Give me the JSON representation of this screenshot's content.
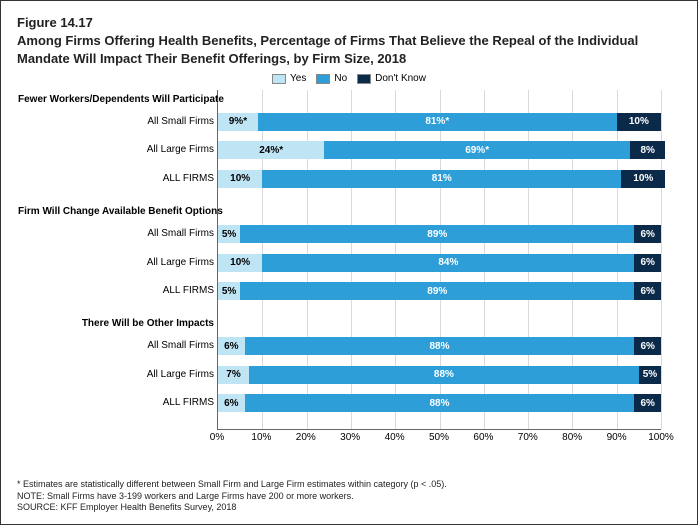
{
  "figure_number": "Figure 14.17",
  "title": "Among Firms Offering Health Benefits, Percentage of Firms That Believe the Repeal of the Individual Mandate Will Impact Their Benefit Offerings, by Firm Size, 2018",
  "legend": {
    "yes": "Yes",
    "no": "No",
    "dont_know": "Don't Know"
  },
  "colors": {
    "yes": "#bfe5f5",
    "no": "#2d9ed8",
    "dont_know": "#0b2a4a",
    "yes_text": "#000000",
    "no_text": "#ffffff",
    "dont_know_text": "#ffffff",
    "grid": "#d9d9d9"
  },
  "x_axis": {
    "min": 0,
    "max": 100,
    "step": 10,
    "ticks": [
      "0%",
      "10%",
      "20%",
      "30%",
      "40%",
      "50%",
      "60%",
      "70%",
      "80%",
      "90%",
      "100%"
    ]
  },
  "groups": [
    {
      "label": "Fewer Workers/Dependents Will Participate",
      "rows": [
        {
          "label": "All Small Firms",
          "yes": 9,
          "no": 81,
          "dk": 10,
          "yes_lbl": "9%*",
          "no_lbl": "81%*",
          "dk_lbl": "10%"
        },
        {
          "label": "All Large Firms",
          "yes": 24,
          "no": 69,
          "dk": 8,
          "yes_lbl": "24%*",
          "no_lbl": "69%*",
          "dk_lbl": "8%"
        },
        {
          "label": "ALL FIRMS",
          "yes": 10,
          "no": 81,
          "dk": 10,
          "yes_lbl": "10%",
          "no_lbl": "81%",
          "dk_lbl": "10%"
        }
      ]
    },
    {
      "label": "Firm Will Change Available Benefit Options",
      "rows": [
        {
          "label": "All Small Firms",
          "yes": 5,
          "no": 89,
          "dk": 6,
          "yes_lbl": "5%",
          "no_lbl": "89%",
          "dk_lbl": "6%"
        },
        {
          "label": "All Large Firms",
          "yes": 10,
          "no": 84,
          "dk": 6,
          "yes_lbl": "10%",
          "no_lbl": "84%",
          "dk_lbl": "6%"
        },
        {
          "label": "ALL FIRMS",
          "yes": 5,
          "no": 89,
          "dk": 6,
          "yes_lbl": "5%",
          "no_lbl": "89%",
          "dk_lbl": "6%"
        }
      ]
    },
    {
      "label": "There Will be Other Impacts",
      "rows": [
        {
          "label": "All Small Firms",
          "yes": 6,
          "no": 88,
          "dk": 6,
          "yes_lbl": "6%",
          "no_lbl": "88%",
          "dk_lbl": "6%"
        },
        {
          "label": "All Large Firms",
          "yes": 7,
          "no": 88,
          "dk": 5,
          "yes_lbl": "7%",
          "no_lbl": "88%",
          "dk_lbl": "5%"
        },
        {
          "label": "ALL FIRMS",
          "yes": 6,
          "no": 88,
          "dk": 6,
          "yes_lbl": "6%",
          "no_lbl": "88%",
          "dk_lbl": "6%"
        }
      ]
    }
  ],
  "footnotes": [
    "* Estimates are statistically different between Small Firm and Large Firm estimates within category (p < .05).",
    "NOTE: Small Firms have 3-199 workers and Large Firms have 200 or more workers.",
    "SOURCE: KFF Employer Health Benefits Survey, 2018"
  ]
}
